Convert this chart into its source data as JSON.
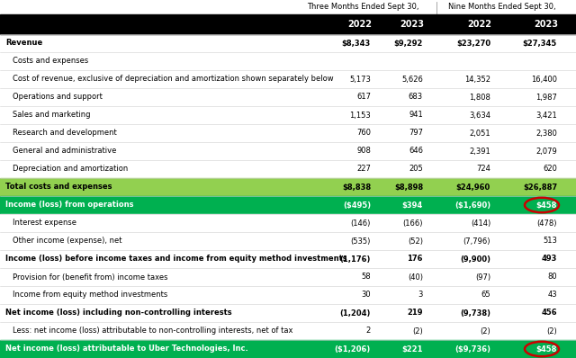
{
  "title_header1": "Three Months Ended Sept 30,",
  "title_header2": "Nine Months Ended Sept 30,",
  "col_headers": [
    "2022",
    "2023",
    "2022",
    "2023"
  ],
  "rows": [
    {
      "label": "Revenue",
      "values": [
        "$8,343",
        "$9,292",
        "$23,270",
        "$27,345"
      ],
      "bold": true,
      "indent": 0,
      "bg": null
    },
    {
      "label": "Costs and expenses",
      "values": [
        "",
        "",
        "",
        ""
      ],
      "bold": false,
      "indent": 0,
      "bg": null
    },
    {
      "label": "Cost of revenue, exclusive of depreciation and amortization shown separately below",
      "values": [
        "5,173",
        "5,626",
        "14,352",
        "16,400"
      ],
      "bold": false,
      "indent": 0,
      "bg": null
    },
    {
      "label": "Operations and support",
      "values": [
        "617",
        "683",
        "1,808",
        "1,987"
      ],
      "bold": false,
      "indent": 0,
      "bg": null
    },
    {
      "label": "Sales and marketing",
      "values": [
        "1,153",
        "941",
        "3,634",
        "3,421"
      ],
      "bold": false,
      "indent": 0,
      "bg": null
    },
    {
      "label": "Research and development",
      "values": [
        "760",
        "797",
        "2,051",
        "2,380"
      ],
      "bold": false,
      "indent": 0,
      "bg": null
    },
    {
      "label": "General and administrative",
      "values": [
        "908",
        "646",
        "2,391",
        "2,079"
      ],
      "bold": false,
      "indent": 0,
      "bg": null
    },
    {
      "label": "Depreciation and amortization",
      "values": [
        "227",
        "205",
        "724",
        "620"
      ],
      "bold": false,
      "indent": 0,
      "bg": null
    },
    {
      "label": "Total costs and expenses",
      "values": [
        "$8,838",
        "$8,898",
        "$24,960",
        "$26,887"
      ],
      "bold": true,
      "indent": 0,
      "bg": "light_green"
    },
    {
      "label": "Income (loss) from operations",
      "values": [
        "($495)",
        "$394",
        "($1,690)",
        "$458"
      ],
      "bold": true,
      "indent": 0,
      "bg": "dark_green",
      "circle_last": true
    },
    {
      "label": "Interest expense",
      "values": [
        "(146)",
        "(166)",
        "(414)",
        "(478)"
      ],
      "bold": false,
      "indent": 0,
      "bg": null
    },
    {
      "label": "Other income (expense), net",
      "values": [
        "(535)",
        "(52)",
        "(7,796)",
        "513"
      ],
      "bold": false,
      "indent": 0,
      "bg": null
    },
    {
      "label": "Income (loss) before income taxes and income from equity method investments",
      "values": [
        "(1,176)",
        "176",
        "(9,900)",
        "493"
      ],
      "bold": true,
      "indent": 0,
      "bg": null
    },
    {
      "label": "Provision for (benefit from) income taxes",
      "values": [
        "58",
        "(40)",
        "(97)",
        "80"
      ],
      "bold": false,
      "indent": 0,
      "bg": null
    },
    {
      "label": "Income from equity method investments",
      "values": [
        "30",
        "3",
        "65",
        "43"
      ],
      "bold": false,
      "indent": 0,
      "bg": null
    },
    {
      "label": "Net income (loss) including non-controlling interests",
      "values": [
        "(1,204)",
        "219",
        "(9,738)",
        "456"
      ],
      "bold": true,
      "indent": 0,
      "bg": null
    },
    {
      "label": "Less: net income (loss) attributable to non-controlling interests, net of tax",
      "values": [
        "2",
        "(2)",
        "(2)",
        "(2)"
      ],
      "bold": false,
      "indent": 0,
      "bg": null
    },
    {
      "label": "Net income (loss) attributable to Uber Technologies, Inc.",
      "values": [
        "($1,206)",
        "$221",
        "($9,736)",
        "$458"
      ],
      "bold": true,
      "indent": 0,
      "bg": "dark_green",
      "circle_last": true
    }
  ],
  "colors": {
    "header_bg": "#000000",
    "header_text": "#ffffff",
    "light_green": "#92d050",
    "dark_green": "#00b050",
    "dark_green_text": "#ffffff",
    "border": "#d0d0d0",
    "text": "#000000",
    "circle_color": "#cc0000"
  },
  "fig_width": 6.4,
  "fig_height": 3.98,
  "dpi": 100
}
